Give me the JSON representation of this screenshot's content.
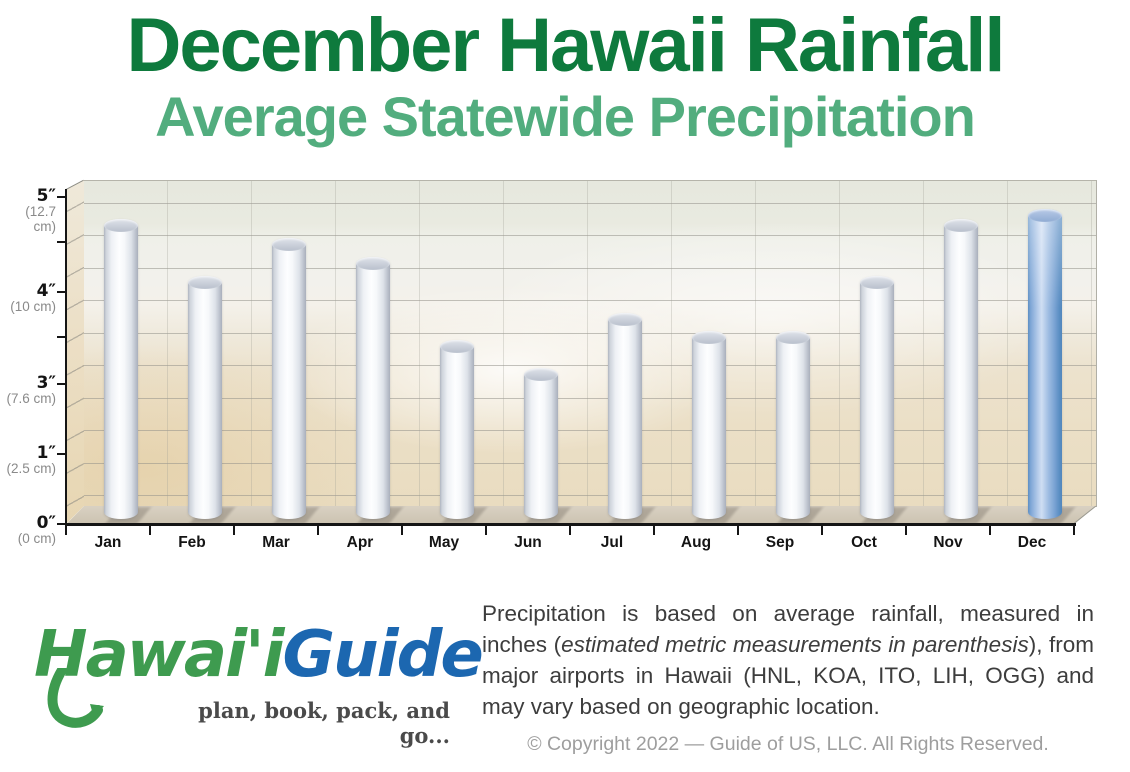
{
  "header": {
    "title": "December Hawaii Rainfall",
    "subtitle": "Average Statewide Precipitation"
  },
  "chart_data": {
    "type": "bar",
    "title": "December Hawaii Rainfall",
    "subtitle": "Average Statewide Precipitation",
    "categories": [
      "Jan",
      "Feb",
      "Mar",
      "Apr",
      "May",
      "Jun",
      "Jul",
      "Aug",
      "Sep",
      "Oct",
      "Nov",
      "Dec"
    ],
    "values": [
      4.7,
      4.1,
      4.5,
      4.3,
      3.4,
      3.1,
      3.7,
      3.5,
      3.5,
      4.1,
      4.7,
      4.8
    ],
    "unit": "inches",
    "ylim": [
      0,
      5
    ],
    "grid": true,
    "highlight_category": "Dec",
    "y_axis_labels": [
      {
        "value": 5,
        "inches": "5″",
        "cm": "(12.7 cm)"
      },
      {
        "value": 4,
        "inches": "4″",
        "cm": "(10 cm)"
      },
      {
        "value": 3,
        "inches": "3″",
        "cm": "(7.6 cm)"
      },
      {
        "value": 1,
        "inches": "1″",
        "cm": "(2.5 cm)"
      },
      {
        "value": 0,
        "inches": "0″",
        "cm": "(0 cm)"
      }
    ],
    "colors": {
      "bar": "#f4f6f9",
      "highlight_bar": "#5e93c6",
      "title": "#0e7a3d",
      "subtitle": "#52ad7e"
    }
  },
  "footer": {
    "logo": {
      "hawaii": "Hawai'i",
      "guide": "Guide",
      "tagline": "plan, book, pack, and go..."
    },
    "description": {
      "part1": "Precipitation is based on average rainfall, measured in inches (",
      "italic": "estimated metric measurements in parenthesis",
      "part3": "), from major airports in Hawaii (HNL, KOA, ITO, LIH, OGG) and may vary based on geographic location."
    },
    "copyright": "© Copyright 2022 — Guide of US, LLC. All Rights Reserved."
  }
}
